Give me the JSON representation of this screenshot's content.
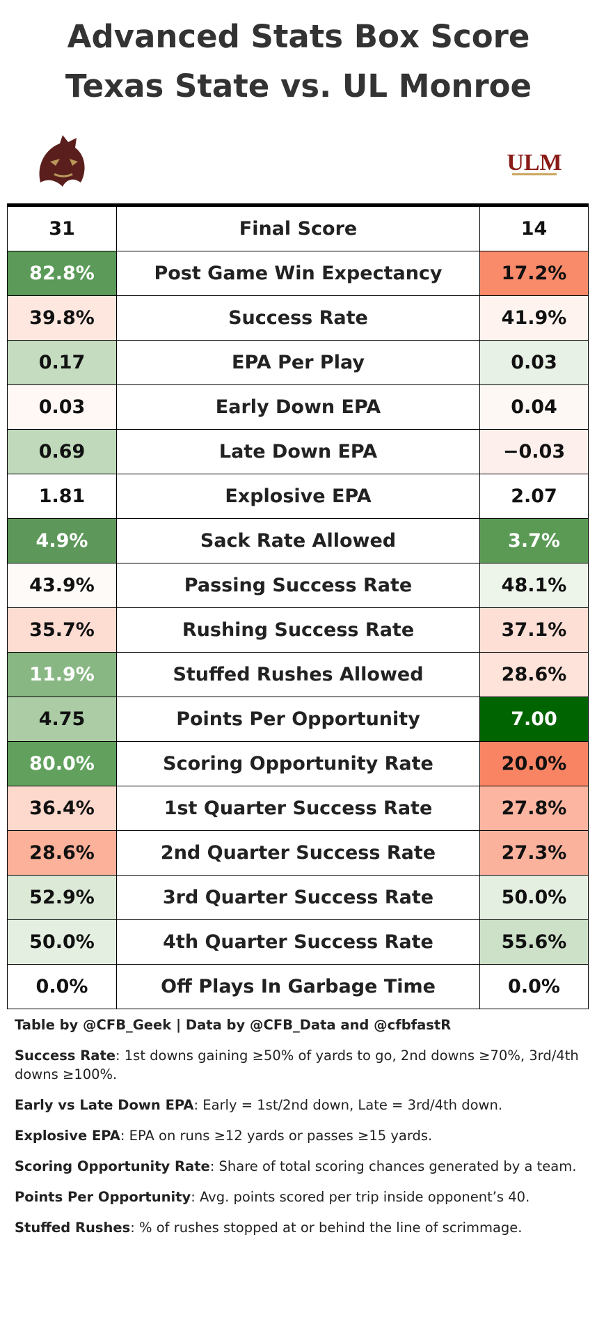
{
  "header": {
    "title_line1": "Advanced Stats Box Score",
    "title_line2": "Texas State vs. UL Monroe",
    "right_logo": "ULM"
  },
  "table": {
    "rows": [
      {
        "left": "31",
        "label": "Final Score",
        "right": "14",
        "left_color": "#ffffff",
        "right_color": "#ffffff"
      },
      {
        "left": "82.8%",
        "label": "Post Game Win Expectancy",
        "right": "17.2%",
        "left_color": "#5b9a58",
        "right_color": "#f98a6a"
      },
      {
        "left": "39.8%",
        "label": "Success Rate",
        "right": "41.9%",
        "left_color": "#fde7df",
        "right_color": "#fef3ef"
      },
      {
        "left": "0.17",
        "label": "EPA Per Play",
        "right": "0.03",
        "left_color": "#c5dcc0",
        "right_color": "#e8f1e5"
      },
      {
        "left": "0.03",
        "label": "Early Down EPA",
        "right": "0.04",
        "left_color": "#fff8f5",
        "right_color": "#fef8f5"
      },
      {
        "left": "0.69",
        "label": "Late Down EPA",
        "right": "−0.03",
        "left_color": "#c0d9bb",
        "right_color": "#fdf0ec"
      },
      {
        "left": "1.81",
        "label": "Explosive EPA",
        "right": "2.07",
        "left_color": "#ffffff",
        "right_color": "#ffffff"
      },
      {
        "left": "4.9%",
        "label": "Sack Rate Allowed",
        "right": "3.7%",
        "left_color": "#5d985a",
        "right_color": "#5a9a55"
      },
      {
        "left": "43.9%",
        "label": "Passing Success Rate",
        "right": "48.1%",
        "left_color": "#fefaf8",
        "right_color": "#edf4ea"
      },
      {
        "left": "35.7%",
        "label": "Rushing Success Rate",
        "right": "37.1%",
        "left_color": "#fddcd2",
        "right_color": "#fddfd5"
      },
      {
        "left": "11.9%",
        "label": "Stuffed Rushes Allowed",
        "right": "28.6%",
        "left_color": "#89b784",
        "right_color": "#fde3da"
      },
      {
        "left": "4.75",
        "label": "Points Per Opportunity",
        "right": "7.00",
        "left_color": "#abcca5",
        "right_color": "#006400"
      },
      {
        "left": "80.0%",
        "label": "Scoring Opportunity Rate",
        "right": "20.0%",
        "left_color": "#62a05d",
        "right_color": "#f98464"
      },
      {
        "left": "36.4%",
        "label": "1st Quarter Success Rate",
        "right": "27.8%",
        "left_color": "#fdd9cd",
        "right_color": "#fbb5a0"
      },
      {
        "left": "28.6%",
        "label": "2nd Quarter Success Rate",
        "right": "27.3%",
        "left_color": "#fbb19a",
        "right_color": "#fbb29d"
      },
      {
        "left": "52.9%",
        "label": "3rd Quarter Success Rate",
        "right": "50.0%",
        "left_color": "#dbe9d6",
        "right_color": "#e5efe1"
      },
      {
        "left": "50.0%",
        "label": "4th Quarter Success Rate",
        "right": "55.6%",
        "left_color": "#e5efe1",
        "right_color": "#cde0c8"
      },
      {
        "left": "0.0%",
        "label": "Off Plays In Garbage Time",
        "right": "0.0%",
        "left_color": "#ffffff",
        "right_color": "#ffffff"
      }
    ]
  },
  "footer": {
    "credit": "Table by @CFB_Geek | Data by @CFB_Data and @cfbfastR",
    "notes": [
      {
        "term": "Success Rate",
        "text": ": 1st downs gaining ≥50% of yards to go, 2nd downs ≥70%, 3rd/4th downs ≥100%."
      },
      {
        "term": "Early vs Late Down EPA",
        "text": ": Early = 1st/2nd down, Late = 3rd/4th down."
      },
      {
        "term": "Explosive EPA",
        "text": ": EPA on runs ≥12 yards or passes ≥15 yards."
      },
      {
        "term": "Scoring Opportunity Rate",
        "text": ": Share of total scoring chances generated by a team."
      },
      {
        "term": "Points Per Opportunity",
        "text": ": Avg. points scored per trip inside opponent’s 40."
      },
      {
        "term": "Stuffed Rushes",
        "text": ": % of rushes stopped at or behind the line of scrimmage."
      }
    ]
  }
}
